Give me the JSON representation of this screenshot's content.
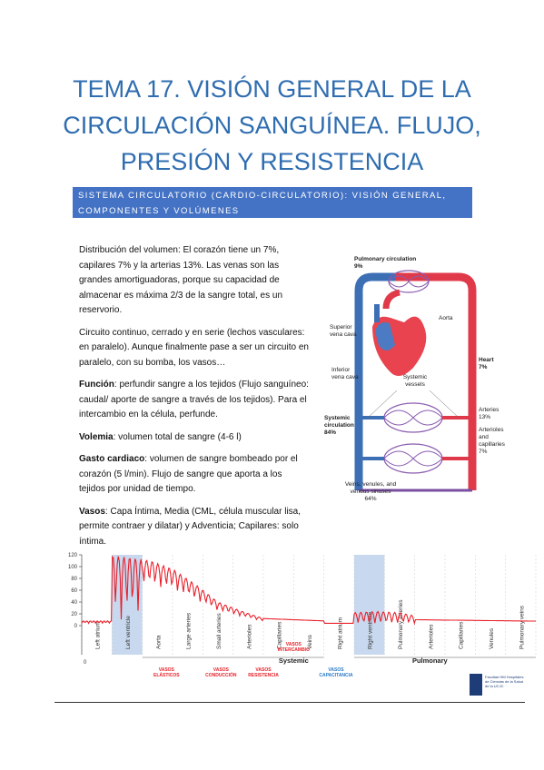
{
  "document": {
    "title": "TEMA 17. VISIÓN GENERAL DE LA CIRCULACIÓN SANGUÍNEA. FLUJO, PRESIÓN Y RESISTENCIA",
    "section_heading": "SISTEMA CIRCULATORIO (CARDIO-CIRCULATORIO): VISIÓN GENERAL, COMPONENTES Y VOLÚMENES",
    "paragraphs": {
      "p1": "Distribución del volumen: El corazón tiene un 7%, capilares 7% y la arterias 13%. Las venas son las grandes amortiguadoras, porque su capacidad de almacenar es máxima 2/3 de la sangre total, es un reservorio.",
      "p2": "Circuito continuo, cerrado y en serie (lechos vasculares: en paralelo). Aunque finalmente pase a ser un circuito en paralelo, con su bomba, los vasos…",
      "p3_label": "Función",
      "p3_text": ": perfundir sangre a los tejidos (Flujo sanguíneo: caudal/ aporte de sangre a través de los tejidos). Para el intercambio en la célula, perfunde.",
      "p4_label": "Volemia",
      "p4_text": ": volumen total de sangre (4-6 l)",
      "p5_label": "Gasto cardiaco",
      "p5_text": ": volumen de sangre bombeado por el corazón (5 l/min). Flujo de sangre que aporta a los tejidos por unidad de tiempo.",
      "p6_label": "Vasos",
      "p6_text": ": Capa Íntima, Media (CML, célula muscular lisa, permite contraer y dilatar) y Adventicia; Capilares: solo íntima."
    }
  },
  "circulation_figure": {
    "pulmonary_circulation": "Pulmonary circulation",
    "pulmonary_pct": "9%",
    "aorta": "Aorta",
    "superior_vena_cava": "Superior vena cava",
    "inferior_vena_cava": "Inferior vena cava",
    "heart": "Heart",
    "heart_pct": "7%",
    "systemic_vessels": "Systemic vessels",
    "systemic_circulation": "Systemic circulation",
    "systemic_pct": "84%",
    "arteries": "Arteries",
    "arteries_pct": "13%",
    "arterioles_capillaries": "Arterioles and capillaries",
    "arterioles_pct": "7%",
    "veins": "Veins, venules, and venous sinuses",
    "veins_pct": "64%"
  },
  "chart_data": {
    "type": "line",
    "yticks": [
      0,
      20,
      40,
      60,
      80,
      100,
      120
    ],
    "ylim": [
      0,
      120
    ],
    "xtick_origin": "0",
    "segments": [
      "Left atrium",
      "Left ventricle",
      "Aorta",
      "Large arteries",
      "Small arteries",
      "Arterioles",
      "Capillaries",
      "Veins",
      "Right atrium",
      "Right ventricle",
      "Pulmonary arteries",
      "Arterioles",
      "Capillaries",
      "Venules",
      "Pulmonary veins"
    ],
    "group_labels": {
      "systemic": "Systemic",
      "pulmonary": "Pulmonary"
    },
    "annotations": {
      "elasticos": "VASOS ELÁSTICOS",
      "conduccion": "VASOS CONDUCCIÓN",
      "resistencia": "VASOS RESISTENCIA",
      "intercambio": "VASOS INTERCAMBIO",
      "capacitancia": "VASOS CAPACITANCIA"
    },
    "series": [
      {
        "systolic_envelope": [
          8,
          120,
          116,
          110,
          96,
          70,
          40,
          25,
          12,
          8,
          5,
          2,
          22,
          24,
          22,
          14,
          12,
          10,
          9,
          8,
          8
        ]
      }
    ],
    "colors": {
      "line": "#e8202a",
      "highlight": "#c8d8ee",
      "annot_red": "#e8202a",
      "annot_blue": "#2a7ac8"
    }
  },
  "footer": {
    "logo_text": "Facultad HM Hospitales de Ciencias de la Salud de la UCJC"
  }
}
